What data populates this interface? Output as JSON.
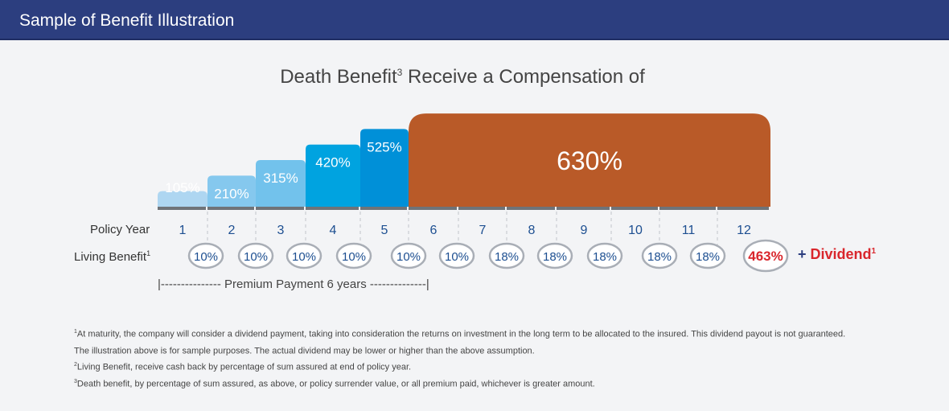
{
  "header": {
    "title": "Sample of Benefit Illustration"
  },
  "chart_title": {
    "text": "Death Benefit",
    "sup": "3",
    "text_after": " Receive a Compensation of"
  },
  "colors": {
    "header": "#2c3e7f",
    "bars": [
      "#aed6f1",
      "#85c8ee",
      "#72c2ec",
      "#00a3e0",
      "#0090d8",
      "#b95a28"
    ],
    "year_text": "#1d4f91",
    "oval_stroke": "#a9aeb6",
    "highlight": "#d9262c"
  },
  "rows": {
    "policy_year_label": "Policy Year",
    "living_benefit_label": "Living Benefit",
    "living_benefit_sup": "1"
  },
  "dividend": {
    "plus": "+ ",
    "text": "Dividend",
    "sup": "1"
  },
  "premium_payment": "|--------------- Premium Payment 6 years --------------|",
  "chart_data": {
    "type": "bar",
    "title": "Death Benefit Receive a Compensation of",
    "death_benefit": {
      "categories": [
        "1",
        "2",
        "3",
        "4",
        "5",
        "6-12"
      ],
      "values": [
        105,
        210,
        315,
        420,
        525,
        630
      ],
      "labels": [
        "105%",
        "210%",
        "315%",
        "420%",
        "525%",
        "630%"
      ]
    },
    "policy_years": [
      "1",
      "2",
      "3",
      "4",
      "5",
      "6",
      "7",
      "8",
      "9",
      "10",
      "11",
      "12"
    ],
    "living_benefit": {
      "values": [
        10,
        10,
        10,
        10,
        10,
        10,
        18,
        18,
        18,
        18,
        18,
        463
      ],
      "labels": [
        "10%",
        "10%",
        "10%",
        "10%",
        "10%",
        "10%",
        "18%",
        "18%",
        "18%",
        "18%",
        "18%",
        "463%"
      ]
    }
  },
  "footnotes": [
    {
      "sup": "1",
      "text": "At maturity, the company will consider a dividend payment, taking into consideration the returns on investment in the long term to be allocated to the insured. This dividend payout is not guaranteed."
    },
    {
      "sup": "",
      "text": " The illustration above is for sample purposes. The actual dividend may be lower or higher than the above assumption."
    },
    {
      "sup": "2",
      "text": "Living Benefit, receive cash back by percentage of sum assured at end of policy year."
    },
    {
      "sup": "3",
      "text": "Death benefit, by percentage of sum assured, as above, or policy surrender value, or all premium paid, whichever is greater amount."
    }
  ]
}
